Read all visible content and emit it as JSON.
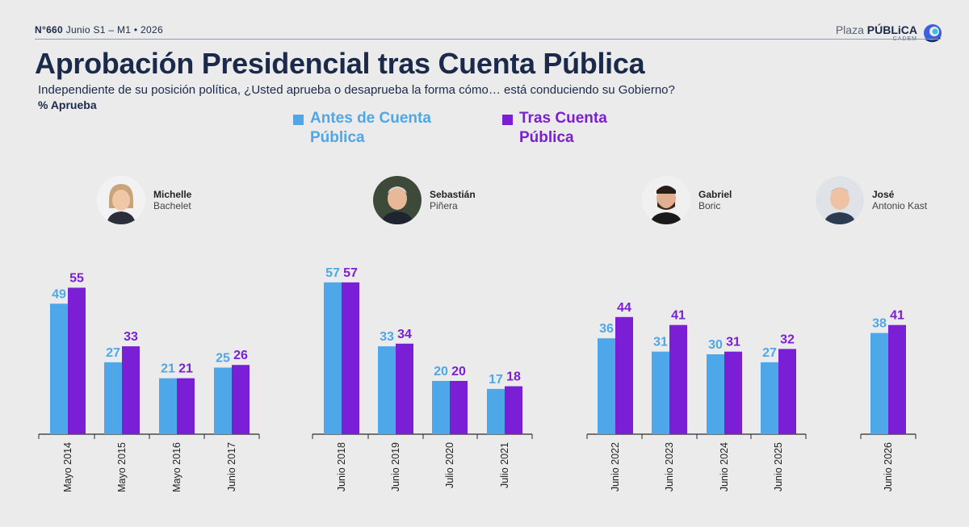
{
  "header": {
    "edition_number": "N°660",
    "edition_rest": "Junio S1 – M1 • 2026",
    "logo_word1": "Plaza",
    "logo_word2": "PÚBLiCA",
    "logo_sub": "CADEM"
  },
  "title": "Aprobación Presidencial tras Cuenta Pública",
  "question": "Independiente de su posición política, ¿Usted aprueba o desaprueba la forma cómo… está conduciendo su Gobierno?",
  "metric_label": "% Aprueba",
  "colors": {
    "before": "#4da7e8",
    "after": "#7a1fd6",
    "axis": "#2a2a2a",
    "text": "#1b2a4a"
  },
  "presidents": [
    {
      "first": "Michelle",
      "last": "Bachelet"
    },
    {
      "first": "Sebastián",
      "last": "Piñera"
    },
    {
      "first": "Gabriel",
      "last": "Boric"
    },
    {
      "first": "José",
      "last": "Antonio Kast"
    }
  ],
  "chart_data": {
    "type": "bar",
    "categories": [
      "Mayo 2014",
      "Mayo 2015",
      "Mayo 2016",
      "Junio 2017",
      "Junio 2018",
      "Junio 2019",
      "Julio 2020",
      "Julio 2021",
      "Junio 2022",
      "Junio 2023",
      "Junio 2024",
      "Junio 2025",
      "Junio 2026"
    ],
    "series": [
      {
        "name": "Antes de Cuenta Pública",
        "values": [
          49,
          27,
          21,
          25,
          57,
          33,
          20,
          17,
          36,
          31,
          30,
          27,
          38
        ]
      },
      {
        "name": "Tras Cuenta Pública",
        "values": [
          55,
          33,
          21,
          26,
          57,
          34,
          20,
          18,
          44,
          41,
          31,
          32,
          41
        ]
      }
    ],
    "groups": [
      {
        "president": "Michelle Bachelet",
        "categories": [
          "Mayo 2014",
          "Mayo 2015",
          "Mayo 2016",
          "Junio 2017"
        ]
      },
      {
        "president": "Sebastián Piñera",
        "categories": [
          "Junio 2018",
          "Junio 2019",
          "Julio 2020",
          "Julio 2021"
        ]
      },
      {
        "president": "Gabriel Boric",
        "categories": [
          "Junio 2022",
          "Junio 2023",
          "Junio 2024",
          "Junio 2025"
        ]
      },
      {
        "president": "José Antonio Kast",
        "categories": [
          "Junio 2026"
        ]
      }
    ],
    "ylim": [
      0,
      60
    ],
    "grid": false,
    "legend_position": "top-center",
    "data_labels": true
  }
}
